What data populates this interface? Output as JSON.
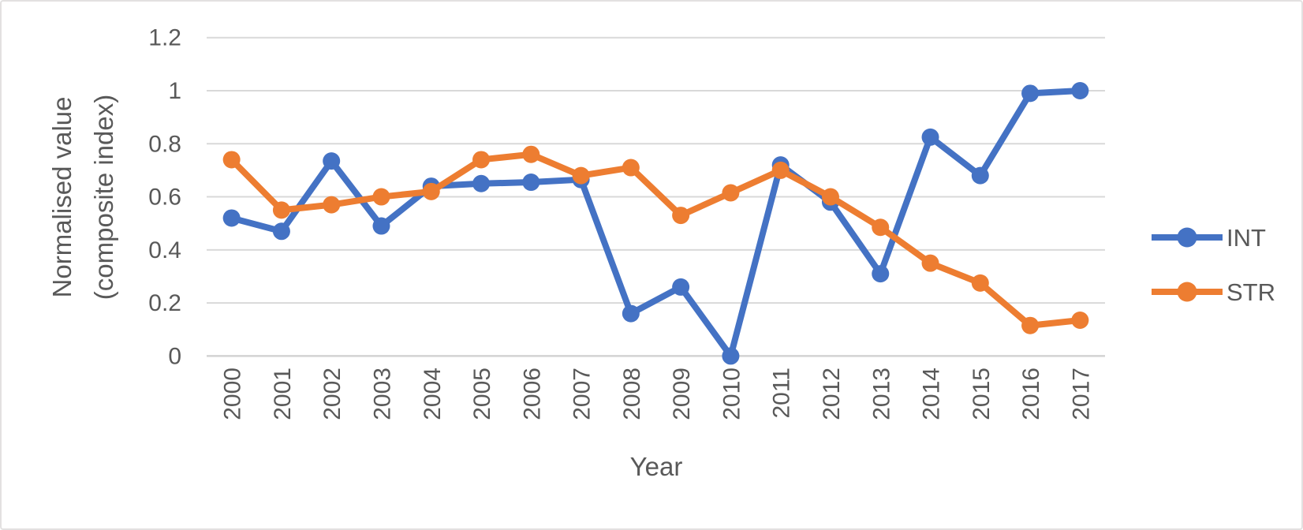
{
  "chart": {
    "xlabel": "Year",
    "ylabel_line1": "Normalised value",
    "ylabel_line2": "(composite index)",
    "text_color": "#595959",
    "grid_color": "#D9D9D9",
    "axis_line_color": "#D3D3D3",
    "legend": [
      {
        "label": "INT",
        "color": "#4472C4"
      },
      {
        "label": "STR",
        "color": "#ED7D31"
      }
    ]
  },
  "chart_data": {
    "type": "line",
    "title": "",
    "xlabel": "Year",
    "ylabel": "Normalised value (composite index)",
    "categories": [
      "2000",
      "2001",
      "2002",
      "2003",
      "2004",
      "2005",
      "2006",
      "2007",
      "2008",
      "2009",
      "2010",
      "2011",
      "2012",
      "2013",
      "2014",
      "2015",
      "2016",
      "2017"
    ],
    "series": [
      {
        "name": "INT",
        "color": "#4472C4",
        "values": [
          0.52,
          0.47,
          0.735,
          0.49,
          0.64,
          0.65,
          0.655,
          0.665,
          0.16,
          0.26,
          0.0,
          0.72,
          0.58,
          0.31,
          0.825,
          0.68,
          0.99,
          1.0
        ]
      },
      {
        "name": "STR",
        "color": "#ED7D31",
        "values": [
          0.74,
          0.55,
          0.57,
          0.6,
          0.62,
          0.74,
          0.76,
          0.68,
          0.71,
          0.53,
          0.615,
          0.7,
          0.6,
          0.485,
          0.35,
          0.275,
          0.115,
          0.135
        ]
      }
    ],
    "ylim": [
      0,
      1.2
    ],
    "yticks": [
      0,
      0.2,
      0.4,
      0.6,
      0.8,
      1,
      1.2
    ],
    "ytick_labels": [
      "0",
      "0.2",
      "0.4",
      "0.6",
      "0.8",
      "1",
      "1.2"
    ],
    "grid": true,
    "legend_position": "right",
    "marker": "circle",
    "line_width": 8,
    "marker_radius": 11
  }
}
